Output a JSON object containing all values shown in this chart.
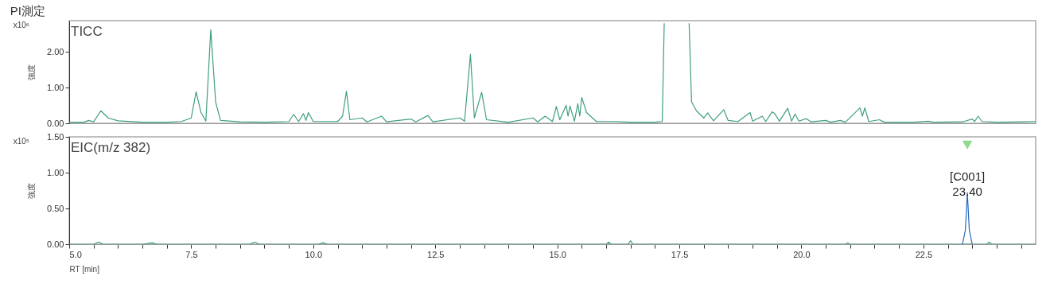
{
  "chart_data": [
    {
      "type": "line",
      "title": "PI測定",
      "ylabel": "強度",
      "tick_labels": "y",
      "xlim": [
        5,
        24.8
      ],
      "ylim": [
        0,
        2.87
      ],
      "yticks": [
        {
          "value": 0,
          "label": "0.00"
        },
        {
          "value": 1,
          "label": "1.00"
        },
        {
          "value": 2,
          "label": "2.00"
        }
      ],
      "annotations": [
        "x10⁶",
        "TICC"
      ],
      "series": [
        {
          "color": "#3f9e7f",
          "x": [
            5.0,
            5.3,
            5.4,
            5.5,
            5.65,
            5.8,
            6.0,
            6.5,
            7.0,
            7.3,
            7.5,
            7.6,
            7.7,
            7.8,
            7.9,
            8.0,
            8.1,
            8.5,
            9.0,
            9.5,
            9.6,
            9.7,
            9.8,
            9.85,
            9.9,
            10.0,
            10.5,
            10.6,
            10.68,
            10.75,
            11.0,
            11.1,
            11.4,
            11.5,
            12.0,
            12.1,
            12.35,
            12.45,
            13.0,
            13.1,
            13.22,
            13.3,
            13.45,
            13.55,
            14.0,
            14.5,
            14.6,
            14.75,
            14.9,
            14.98,
            15.05,
            15.18,
            15.22,
            15.26,
            15.35,
            15.42,
            15.46,
            15.5,
            15.6,
            15.8,
            16.2,
            16.5,
            17.0,
            17.15,
            17.19,
            17.2,
            17.68,
            17.7,
            17.75,
            17.85,
            18.0,
            18.08,
            18.2,
            18.41,
            18.5,
            18.7,
            18.95,
            19.0,
            19.2,
            19.27,
            19.4,
            19.45,
            19.55,
            19.72,
            19.8,
            19.87,
            19.95,
            20.1,
            20.2,
            20.5,
            20.6,
            20.8,
            20.9,
            21.2,
            21.25,
            21.3,
            21.38,
            21.6,
            21.7,
            22.3,
            22.6,
            22.7,
            23.3,
            23.5,
            23.55,
            23.62,
            23.7,
            24.0,
            24.5,
            24.8
          ],
          "values": [
            0.03,
            0.03,
            0.08,
            0.04,
            0.35,
            0.15,
            0.07,
            0.03,
            0.03,
            0.05,
            0.15,
            0.88,
            0.3,
            0.06,
            2.62,
            0.6,
            0.08,
            0.04,
            0.03,
            0.05,
            0.25,
            0.05,
            0.27,
            0.08,
            0.3,
            0.05,
            0.05,
            0.2,
            0.9,
            0.1,
            0.15,
            0.04,
            0.2,
            0.04,
            0.12,
            0.04,
            0.22,
            0.04,
            0.15,
            0.06,
            1.93,
            0.15,
            0.87,
            0.1,
            0.03,
            0.15,
            0.04,
            0.2,
            0.05,
            0.47,
            0.1,
            0.5,
            0.2,
            0.48,
            0.06,
            0.55,
            0.2,
            0.72,
            0.3,
            0.05,
            0.05,
            0.03,
            0.03,
            0.05,
            2.8,
            null,
            null,
            2.8,
            0.6,
            0.35,
            0.15,
            0.29,
            0.07,
            0.38,
            0.08,
            0.05,
            0.3,
            0.06,
            0.2,
            0.05,
            0.32,
            0.28,
            0.06,
            0.42,
            0.06,
            0.26,
            0.06,
            0.13,
            0.04,
            0.08,
            0.03,
            0.08,
            0.03,
            0.43,
            0.2,
            0.43,
            0.05,
            0.1,
            0.03,
            0.03,
            0.06,
            0.03,
            0.04,
            0.12,
            0.05,
            0.2,
            0.05,
            0.03,
            0.04,
            0.05
          ]
        }
      ]
    },
    {
      "type": "line",
      "ylabel": "強度",
      "xlabel": "RT [min]",
      "xlim": [
        5,
        24.8
      ],
      "xticks": [
        {
          "value": 5,
          "label": "5.0"
        },
        {
          "value": 5.5,
          "label": null
        },
        {
          "value": 6,
          "label": null
        },
        {
          "value": 6.5,
          "label": null
        },
        {
          "value": 7,
          "label": null
        },
        {
          "value": 7.5,
          "label": "7.5"
        },
        {
          "value": 8,
          "label": null
        },
        {
          "value": 8.5,
          "label": null
        },
        {
          "value": 9,
          "label": null
        },
        {
          "value": 9.5,
          "label": null
        },
        {
          "value": 10,
          "label": "10.0"
        },
        {
          "value": 10.5,
          "label": null
        },
        {
          "value": 11,
          "label": null
        },
        {
          "value": 11.5,
          "label": null
        },
        {
          "value": 12,
          "label": null
        },
        {
          "value": 12.5,
          "label": "12.5"
        },
        {
          "value": 13,
          "label": null
        },
        {
          "value": 13.5,
          "label": null
        },
        {
          "value": 14,
          "label": null
        },
        {
          "value": 14.5,
          "label": null
        },
        {
          "value": 15,
          "label": "15.0"
        },
        {
          "value": 15.5,
          "label": null
        },
        {
          "value": 16,
          "label": null
        },
        {
          "value": 16.5,
          "label": null
        },
        {
          "value": 17,
          "label": null
        },
        {
          "value": 17.5,
          "label": "17.5"
        },
        {
          "value": 18,
          "label": null
        },
        {
          "value": 18.5,
          "label": null
        },
        {
          "value": 19,
          "label": null
        },
        {
          "value": 19.5,
          "label": null
        },
        {
          "value": 20,
          "label": "20.0"
        },
        {
          "value": 20.5,
          "label": null
        },
        {
          "value": 21,
          "label": null
        },
        {
          "value": 21.5,
          "label": null
        },
        {
          "value": 22,
          "label": null
        },
        {
          "value": 22.5,
          "label": "22.5"
        },
        {
          "value": 23,
          "label": null
        },
        {
          "value": 23.5,
          "label": null
        },
        {
          "value": 24,
          "label": null
        },
        {
          "value": 24.5,
          "label": null
        }
      ],
      "ylim": [
        0,
        1.5
      ],
      "yticks": [
        {
          "value": 0,
          "label": "0.00"
        },
        {
          "value": 0.5,
          "label": "0.50"
        },
        {
          "value": 1,
          "label": "1.00"
        },
        {
          "value": 1.5,
          "label": "1.50"
        }
      ],
      "annotations": [
        "x10⁵",
        "EIC(m/z 382)",
        {
          "text": "[C001]\n23.40",
          "x": 23.4,
          "y": 0.72
        }
      ],
      "series": [
        {
          "color": "#3f9e7f",
          "x": [
            5.0,
            5.5,
            5.6,
            5.7,
            6.5,
            6.7,
            6.8,
            8.7,
            8.8,
            8.9,
            10.1,
            10.2,
            10.3,
            16.0,
            16.05,
            16.1,
            16.45,
            16.5,
            16.55,
            20.9,
            20.95,
            21.0,
            23.8,
            23.85,
            23.9,
            24.8
          ],
          "values": [
            0.0,
            0.0,
            0.03,
            0.0,
            0.0,
            0.02,
            0.0,
            0.0,
            0.03,
            0.0,
            0.0,
            0.02,
            0.0,
            0.0,
            0.03,
            0.0,
            0.0,
            0.05,
            0.0,
            0.0,
            0.02,
            0.0,
            0.0,
            0.03,
            0.0,
            0.0
          ]
        },
        {
          "color": "#2468c4",
          "x": [
            23.3,
            23.36,
            23.4,
            23.44,
            23.5
          ],
          "values": [
            0.0,
            0.2,
            0.72,
            0.2,
            0.0
          ]
        }
      ]
    }
  ]
}
